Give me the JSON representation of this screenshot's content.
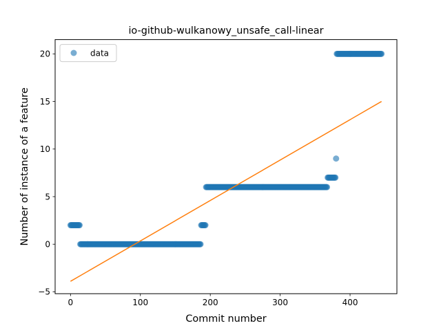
{
  "chart_data": {
    "type": "scatter",
    "title": "io-github-wulkanowy_unsafe_call-linear",
    "xlabel": "Commit number",
    "ylabel": "Number of instance of a feature",
    "xlim": [
      -22,
      467
    ],
    "ylim": [
      -5.2,
      21.5
    ],
    "xticks": [
      0,
      100,
      200,
      300,
      400
    ],
    "yticks": [
      -5,
      0,
      5,
      10,
      15,
      20
    ],
    "grid": false,
    "legend": {
      "placement": "top-left",
      "entries": [
        "data"
      ]
    },
    "series": [
      {
        "name": "data",
        "kind": "scatter",
        "color": "#1f77b4",
        "opacity": 0.6,
        "segments": [
          {
            "x_start": 0,
            "x_end": 13,
            "step": 1,
            "y": 2
          },
          {
            "x_start": 14,
            "x_end": 186,
            "step": 1,
            "y": 0
          },
          {
            "x_start": 187,
            "x_end": 193,
            "step": 1,
            "y": 2
          },
          {
            "x_start": 194,
            "x_end": 367,
            "step": 1,
            "y": 6
          },
          {
            "x_start": 368,
            "x_end": 379,
            "step": 1,
            "y": 7
          },
          {
            "x_start": 380,
            "x_end": 380,
            "step": 1,
            "y": 9
          },
          {
            "x_start": 381,
            "x_end": 445,
            "step": 1,
            "y": 20
          }
        ]
      },
      {
        "name": "",
        "kind": "line",
        "color": "#ff7f0e",
        "x": [
          0,
          445
        ],
        "y": [
          -3.9,
          15.0
        ]
      }
    ]
  }
}
